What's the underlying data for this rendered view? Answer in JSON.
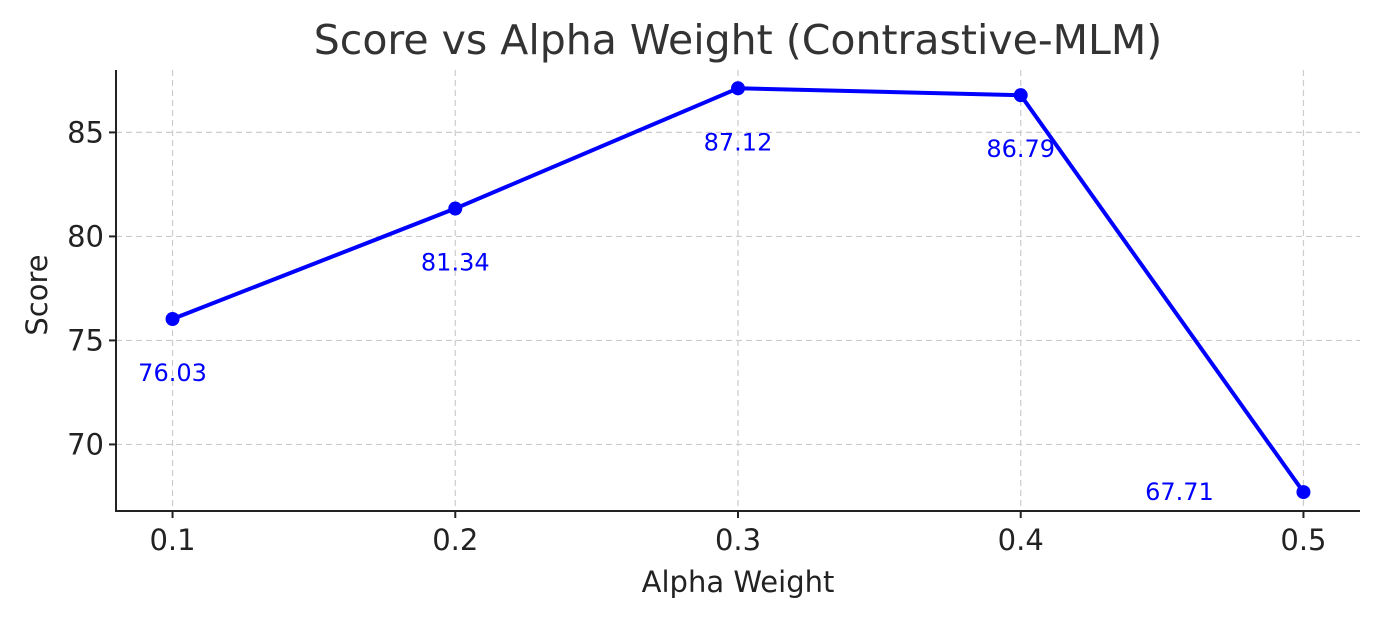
{
  "chart_data": {
    "type": "line",
    "title": "Score vs Alpha Weight (Contrastive-MLM)",
    "xlabel": "Alpha Weight",
    "ylabel": "Score",
    "x": [
      0.1,
      0.2,
      0.3,
      0.4,
      0.5
    ],
    "x_tick_labels": [
      "0.1",
      "0.2",
      "0.3",
      "0.4",
      "0.5"
    ],
    "xlim": [
      0.08,
      0.52
    ],
    "y_ticks": [
      70,
      75,
      80,
      85
    ],
    "y_tick_labels": [
      "70",
      "75",
      "80",
      "85"
    ],
    "ylim": [
      66.8,
      88.0
    ],
    "grid": true,
    "series": [
      {
        "values": [
          76.03,
          81.34,
          87.12,
          86.79,
          67.71
        ],
        "data_labels": [
          "76.03",
          "81.34",
          "87.12",
          "86.79",
          "67.71"
        ],
        "color": "#0000ff",
        "marker": "circle"
      }
    ]
  }
}
